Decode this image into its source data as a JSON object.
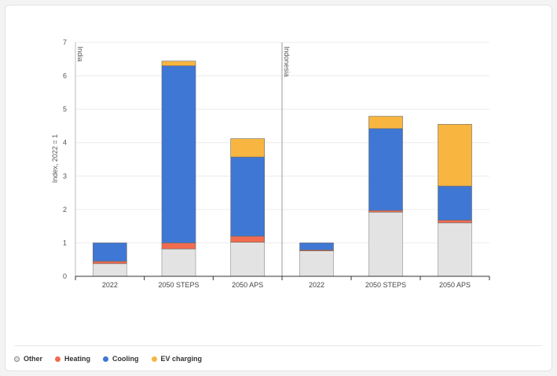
{
  "chart_data": {
    "type": "bar",
    "stacked": true,
    "ylabel": "Index, 2022 = 1",
    "ylim": [
      0,
      7
    ],
    "yticks": [
      0,
      1,
      2,
      3,
      4,
      5,
      6,
      7
    ],
    "grid": true,
    "legend_position": "bottom-left",
    "panels": [
      {
        "name": "India",
        "categories": [
          "2022",
          "2050 STEPS",
          "2050 APS"
        ],
        "series": [
          {
            "name": "Other",
            "values": [
              0.38,
              0.82,
              1.02
            ]
          },
          {
            "name": "Heating",
            "values": [
              0.07,
              0.18,
              0.18
            ]
          },
          {
            "name": "Cooling",
            "values": [
              0.55,
              5.3,
              2.37
            ]
          },
          {
            "name": "EV charging",
            "values": [
              0.0,
              0.14,
              0.55
            ]
          }
        ]
      },
      {
        "name": "Indonesia",
        "categories": [
          "2022",
          "2050 STEPS",
          "2050 APS"
        ],
        "series": [
          {
            "name": "Other",
            "values": [
              0.76,
              1.92,
              1.6
            ]
          },
          {
            "name": "Heating",
            "values": [
              0.03,
              0.05,
              0.08
            ]
          },
          {
            "name": "Cooling",
            "values": [
              0.21,
              2.45,
              1.02
            ]
          },
          {
            "name": "EV charging",
            "values": [
              0.0,
              0.37,
              1.85
            ]
          }
        ]
      }
    ],
    "colors": {
      "Other": "#e3e3e3",
      "Heating": "#f26b4f",
      "Cooling": "#3f77d4",
      "EV charging": "#f8b640"
    }
  },
  "legend": [
    {
      "label": "Other",
      "color": "#e3e3e3",
      "border": "#888888"
    },
    {
      "label": "Heating",
      "color": "#f26b4f",
      "border": "#f26b4f"
    },
    {
      "label": "Cooling",
      "color": "#3f77d4",
      "border": "#3f77d4"
    },
    {
      "label": "EV charging",
      "color": "#f8b640",
      "border": "#f8b640"
    }
  ]
}
